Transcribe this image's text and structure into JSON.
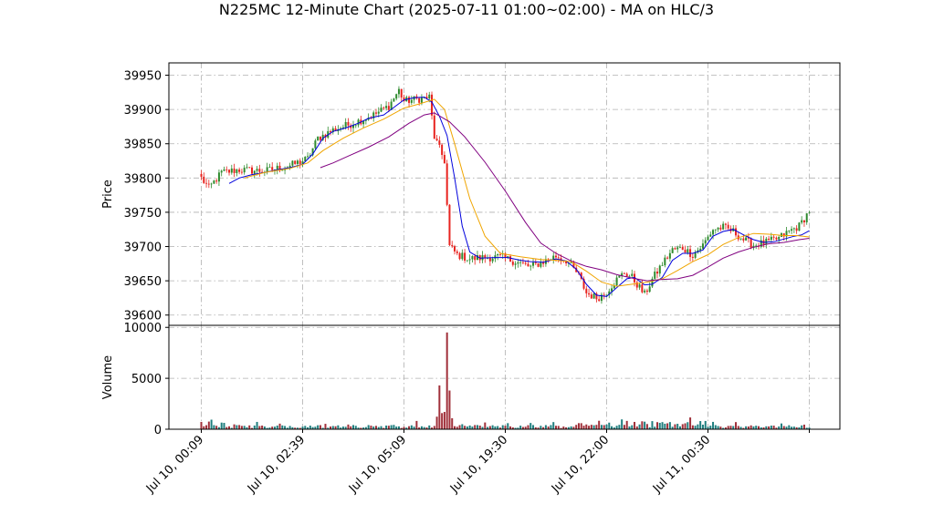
{
  "chart_data": {
    "type": "candlestick",
    "title": "N225MC 12-Minute Chart (2025-07-11 01:00~02:00) - MA on HLC/3",
    "price_panel": {
      "ylabel": "Price",
      "ylim": [
        39585,
        39968
      ],
      "yticks": [
        39600,
        39650,
        39700,
        39750,
        39800,
        39850,
        39900,
        39950
      ]
    },
    "volume_panel": {
      "ylabel": "Volume",
      "ylim": [
        0,
        10200
      ],
      "yticks": [
        0,
        5000,
        10000
      ]
    },
    "x_axis": {
      "n_bars": 241,
      "ticks": [
        {
          "index": 0,
          "label": "Jul 10, 00:09"
        },
        {
          "index": 40,
          "label": "Jul 10, 02:39"
        },
        {
          "index": 80,
          "label": "Jul 10, 05:09"
        },
        {
          "index": 120,
          "label": "Jul 10, 19:30"
        },
        {
          "index": 160,
          "label": "Jul 10, 22:00"
        },
        {
          "index": 200,
          "label": "Jul 11, 00:30"
        },
        {
          "index": 240,
          "label": ""
        }
      ]
    },
    "grid": true,
    "colors": {
      "up": "#2e8b2e",
      "down": "#e8231f",
      "vol_up": "#1f7f7f",
      "vol_down": "#a0303a",
      "ma_fast": "#0000dd",
      "ma_mid": "#f0a500",
      "ma_slow": "#800080"
    },
    "price_path": [
      [
        0,
        39800
      ],
      [
        3,
        39785
      ],
      [
        8,
        39808
      ],
      [
        15,
        39812
      ],
      [
        25,
        39810
      ],
      [
        35,
        39818
      ],
      [
        42,
        39828
      ],
      [
        46,
        39858
      ],
      [
        52,
        39870
      ],
      [
        60,
        39880
      ],
      [
        68,
        39892
      ],
      [
        74,
        39905
      ],
      [
        78,
        39928
      ],
      [
        80,
        39912
      ],
      [
        85,
        39915
      ],
      [
        90,
        39918
      ],
      [
        92,
        39860
      ],
      [
        96,
        39825
      ],
      [
        97,
        39760
      ],
      [
        98,
        39700
      ],
      [
        101,
        39688
      ],
      [
        106,
        39682
      ],
      [
        112,
        39684
      ],
      [
        118,
        39685
      ],
      [
        124,
        39678
      ],
      [
        130,
        39670
      ],
      [
        135,
        39678
      ],
      [
        140,
        39686
      ],
      [
        144,
        39680
      ],
      [
        149,
        39658
      ],
      [
        152,
        39632
      ],
      [
        156,
        39625
      ],
      [
        159,
        39630
      ],
      [
        163,
        39648
      ],
      [
        167,
        39662
      ],
      [
        170,
        39655
      ],
      [
        173,
        39640
      ],
      [
        175,
        39630
      ],
      [
        178,
        39652
      ],
      [
        182,
        39675
      ],
      [
        186,
        39695
      ],
      [
        190,
        39698
      ],
      [
        194,
        39688
      ],
      [
        198,
        39702
      ],
      [
        202,
        39725
      ],
      [
        206,
        39728
      ],
      [
        210,
        39722
      ],
      [
        214,
        39710
      ],
      [
        218,
        39702
      ],
      [
        223,
        39706
      ],
      [
        228,
        39712
      ],
      [
        232,
        39722
      ],
      [
        236,
        39730
      ],
      [
        240,
        39752
      ]
    ],
    "volume_spikes": [
      {
        "index": 94,
        "value": 4300
      },
      {
        "index": 97,
        "value": 9500
      },
      {
        "index": 98,
        "value": 3800
      }
    ],
    "moving_averages": [
      {
        "key": "ma_fast",
        "points": [
          [
            11,
            39792
          ],
          [
            15,
            39800
          ],
          [
            20,
            39805
          ],
          [
            25,
            39808
          ],
          [
            30,
            39812
          ],
          [
            35,
            39815
          ],
          [
            40,
            39820
          ],
          [
            44,
            39835
          ],
          [
            48,
            39858
          ],
          [
            52,
            39868
          ],
          [
            57,
            39873
          ],
          [
            62,
            39880
          ],
          [
            66,
            39887
          ],
          [
            72,
            39892
          ],
          [
            76,
            39903
          ],
          [
            80,
            39914
          ],
          [
            84,
            39917
          ],
          [
            88,
            39918
          ],
          [
            91,
            39911
          ],
          [
            94,
            39890
          ],
          [
            97,
            39862
          ],
          [
            100,
            39800
          ],
          [
            103,
            39730
          ],
          [
            106,
            39692
          ],
          [
            110,
            39683
          ],
          [
            116,
            39684
          ],
          [
            121,
            39684
          ],
          [
            126,
            39680
          ],
          [
            130,
            39678
          ],
          [
            135,
            39677
          ],
          [
            140,
            39682
          ],
          [
            144,
            39679
          ],
          [
            148,
            39667
          ],
          [
            152,
            39645
          ],
          [
            156,
            39629
          ],
          [
            160,
            39627
          ],
          [
            164,
            39640
          ],
          [
            168,
            39653
          ],
          [
            171,
            39655
          ],
          [
            175,
            39644
          ],
          [
            178,
            39645
          ],
          [
            182,
            39655
          ],
          [
            186,
            39680
          ],
          [
            190,
            39690
          ],
          [
            194,
            39690
          ],
          [
            198,
            39695
          ],
          [
            202,
            39715
          ],
          [
            206,
            39722
          ],
          [
            210,
            39725
          ],
          [
            214,
            39717
          ],
          [
            218,
            39710
          ],
          [
            222,
            39706
          ],
          [
            226,
            39707
          ],
          [
            230,
            39711
          ],
          [
            234,
            39715
          ],
          [
            237,
            39717
          ],
          [
            240,
            39723
          ]
        ]
      },
      {
        "key": "ma_mid",
        "points": [
          [
            17,
            39800
          ],
          [
            25,
            39808
          ],
          [
            35,
            39814
          ],
          [
            42,
            39822
          ],
          [
            48,
            39840
          ],
          [
            56,
            39858
          ],
          [
            64,
            39873
          ],
          [
            72,
            39886
          ],
          [
            80,
            39902
          ],
          [
            86,
            39908
          ],
          [
            92,
            39915
          ],
          [
            96,
            39900
          ],
          [
            100,
            39850
          ],
          [
            106,
            39770
          ],
          [
            112,
            39715
          ],
          [
            118,
            39690
          ],
          [
            126,
            39685
          ],
          [
            134,
            39681
          ],
          [
            140,
            39680
          ],
          [
            146,
            39678
          ],
          [
            152,
            39664
          ],
          [
            158,
            39648
          ],
          [
            164,
            39642
          ],
          [
            170,
            39645
          ],
          [
            176,
            39648
          ],
          [
            182,
            39653
          ],
          [
            188,
            39665
          ],
          [
            194,
            39678
          ],
          [
            200,
            39688
          ],
          [
            206,
            39703
          ],
          [
            212,
            39713
          ],
          [
            218,
            39719
          ],
          [
            224,
            39718
          ],
          [
            230,
            39716
          ],
          [
            235,
            39716
          ],
          [
            240,
            39714
          ]
        ]
      },
      {
        "key": "ma_slow",
        "points": [
          [
            47,
            39815
          ],
          [
            52,
            39822
          ],
          [
            58,
            39832
          ],
          [
            66,
            39845
          ],
          [
            74,
            39860
          ],
          [
            82,
            39880
          ],
          [
            88,
            39892
          ],
          [
            92,
            39895
          ],
          [
            98,
            39882
          ],
          [
            104,
            39860
          ],
          [
            112,
            39823
          ],
          [
            120,
            39781
          ],
          [
            128,
            39735
          ],
          [
            134,
            39705
          ],
          [
            140,
            39690
          ],
          [
            146,
            39679
          ],
          [
            152,
            39671
          ],
          [
            158,
            39666
          ],
          [
            164,
            39659
          ],
          [
            170,
            39654
          ],
          [
            176,
            39650
          ],
          [
            182,
            39652
          ],
          [
            188,
            39653
          ],
          [
            194,
            39658
          ],
          [
            200,
            39670
          ],
          [
            206,
            39683
          ],
          [
            212,
            39692
          ],
          [
            218,
            39699
          ],
          [
            224,
            39704
          ],
          [
            230,
            39706
          ],
          [
            236,
            39710
          ],
          [
            240,
            39712
          ]
        ]
      }
    ]
  }
}
